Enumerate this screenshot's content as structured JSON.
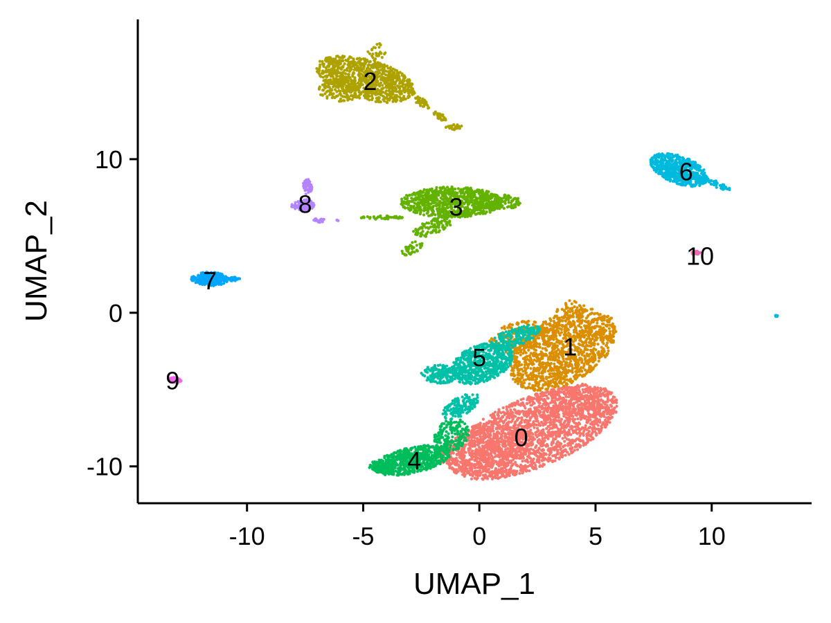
{
  "chart_data": {
    "type": "scatter",
    "title": "",
    "xlabel": "UMAP_1",
    "ylabel": "UMAP_2",
    "xlim": [
      -14.7,
      14.3
    ],
    "ylim": [
      -12.4,
      19.1
    ],
    "xticks": [
      -10,
      -5,
      0,
      5,
      10
    ],
    "xtick_labels": [
      "-10",
      "-5",
      "0",
      "5",
      "10"
    ],
    "yticks": [
      -10,
      0,
      10
    ],
    "ytick_labels": [
      "-10",
      "0",
      "10"
    ],
    "grid": false,
    "legend": "none",
    "clusters": [
      {
        "id": "0",
        "color": "#F8766D",
        "label_pos": [
          1.8,
          -8.1
        ],
        "blobs": [
          [
            2.3,
            -7.8,
            3.9,
            2.3,
            22,
            2200
          ],
          [
            0.3,
            -8.9,
            2.0,
            1.5,
            10,
            400
          ],
          [
            4.2,
            -5.6,
            1.0,
            1.0,
            0,
            150
          ]
        ]
      },
      {
        "id": "1",
        "color": "#DB8E00",
        "label_pos": [
          3.9,
          -2.2
        ],
        "blobs": [
          [
            3.6,
            -2.4,
            2.5,
            2.2,
            30,
            1300
          ],
          [
            1.7,
            -1.6,
            1.3,
            1.0,
            15,
            200
          ],
          [
            4.0,
            0.2,
            0.7,
            0.6,
            0,
            40
          ]
        ]
      },
      {
        "id": "2",
        "color": "#AEA200",
        "label_pos": [
          -4.7,
          15.1
        ],
        "blobs": [
          [
            -4.9,
            15.2,
            2.2,
            1.3,
            -15,
            900
          ],
          [
            -6.0,
            14.5,
            0.9,
            0.8,
            0,
            120
          ],
          [
            -4.4,
            17.0,
            0.4,
            0.6,
            0,
            25
          ],
          [
            -2.5,
            13.7,
            0.4,
            0.25,
            -35,
            40
          ],
          [
            -1.7,
            12.8,
            0.3,
            0.2,
            -35,
            30
          ],
          [
            -1.1,
            12.1,
            0.35,
            0.2,
            0,
            30
          ]
        ]
      },
      {
        "id": "3",
        "color": "#64B200",
        "label_pos": [
          -1.0,
          6.9
        ],
        "blobs": [
          [
            -1.2,
            7.2,
            2.2,
            1.0,
            0,
            800
          ],
          [
            0.8,
            7.2,
            1.0,
            0.5,
            0,
            120
          ],
          [
            -2.0,
            5.6,
            0.9,
            0.5,
            20,
            100
          ],
          [
            -2.9,
            4.2,
            0.5,
            0.35,
            30,
            40
          ],
          [
            -4.2,
            6.2,
            0.9,
            0.12,
            0,
            45
          ]
        ]
      },
      {
        "id": "4",
        "color": "#00BD5C",
        "label_pos": [
          -2.8,
          -9.6
        ],
        "blobs": [
          [
            -2.9,
            -9.6,
            1.7,
            0.85,
            12,
            700
          ],
          [
            -1.2,
            -8.0,
            0.8,
            1.0,
            40,
            180
          ],
          [
            -4.2,
            -10.0,
            0.6,
            0.4,
            0,
            80
          ]
        ]
      },
      {
        "id": "5",
        "color": "#00C1A7",
        "label_pos": [
          0.0,
          -2.9
        ],
        "blobs": [
          [
            0.1,
            -3.3,
            1.4,
            1.2,
            20,
            600
          ],
          [
            -1.7,
            -4.0,
            0.8,
            0.6,
            0,
            150
          ],
          [
            1.5,
            -1.6,
            1.2,
            0.6,
            20,
            200
          ],
          [
            -0.8,
            -6.1,
            0.9,
            0.6,
            30,
            150
          ]
        ]
      },
      {
        "id": "6",
        "color": "#00BADE",
        "label_pos": [
          8.9,
          9.2
        ],
        "blobs": [
          [
            8.6,
            9.3,
            1.3,
            0.9,
            -20,
            600
          ],
          [
            10.3,
            8.3,
            0.6,
            0.2,
            -25,
            50
          ],
          [
            12.8,
            -0.2,
            0.06,
            0.06,
            0,
            6
          ]
        ]
      },
      {
        "id": "7",
        "color": "#00A6FF",
        "label_pos": [
          -11.6,
          2.1
        ],
        "blobs": [
          [
            -11.6,
            2.2,
            0.8,
            0.45,
            0,
            260
          ],
          [
            -10.6,
            2.2,
            0.3,
            0.12,
            0,
            30
          ]
        ]
      },
      {
        "id": "8",
        "color": "#B385FF",
        "label_pos": [
          -7.5,
          7.1
        ],
        "blobs": [
          [
            -7.6,
            7.0,
            0.5,
            0.4,
            0,
            120
          ],
          [
            -7.4,
            8.2,
            0.2,
            0.5,
            0,
            50
          ],
          [
            -6.9,
            6.0,
            0.25,
            0.15,
            0,
            20
          ],
          [
            -6.1,
            6.0,
            0.05,
            0.05,
            0,
            3
          ]
        ]
      },
      {
        "id": "9",
        "color": "#EF67EB",
        "label_pos": [
          -13.2,
          -4.4
        ],
        "blobs": [
          [
            -13.1,
            -4.4,
            0.3,
            0.2,
            0,
            40
          ]
        ]
      },
      {
        "id": "10",
        "color": "#FF63B6",
        "label_pos": [
          9.5,
          3.7
        ],
        "blobs": [
          [
            9.3,
            3.9,
            0.22,
            0.12,
            0,
            18
          ]
        ]
      }
    ]
  }
}
